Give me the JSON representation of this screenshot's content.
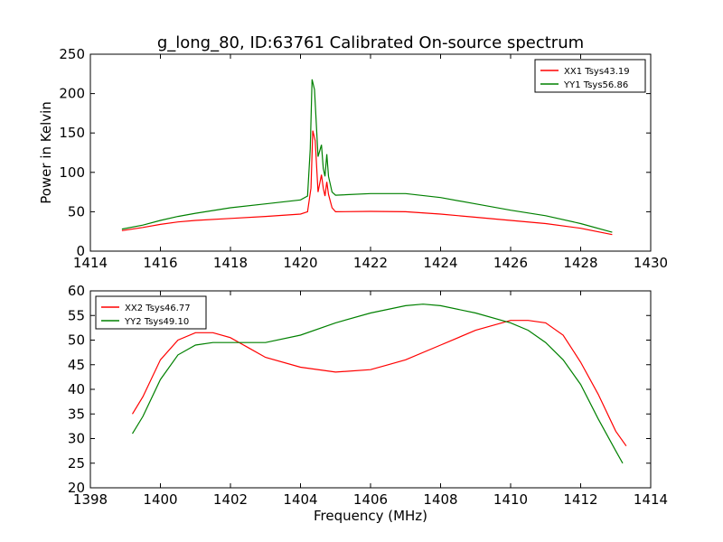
{
  "title": "g_long_80, ID:63761 Calibrated On-source spectrum",
  "chart_data": [
    {
      "type": "line",
      "ylabel": "Power in Kelvin",
      "xlabel": "",
      "xlim": [
        1414,
        1430
      ],
      "ylim": [
        0,
        250
      ],
      "xticks": [
        1414,
        1416,
        1418,
        1420,
        1422,
        1424,
        1426,
        1428,
        1430
      ],
      "yticks": [
        0,
        50,
        100,
        150,
        200,
        250
      ],
      "legend_position": "top-right",
      "series": [
        {
          "name": "XX1 Tsys43.19",
          "color": "#ff0000",
          "points": [
            [
              1414.9,
              26
            ],
            [
              1415.5,
              30
            ],
            [
              1416,
              34
            ],
            [
              1416.5,
              37
            ],
            [
              1417,
              39
            ],
            [
              1418,
              41.5
            ],
            [
              1419,
              44
            ],
            [
              1420,
              47
            ],
            [
              1420.2,
              50
            ],
            [
              1420.3,
              80
            ],
            [
              1420.35,
              153
            ],
            [
              1420.42,
              140
            ],
            [
              1420.5,
              75
            ],
            [
              1420.6,
              97
            ],
            [
              1420.65,
              80
            ],
            [
              1420.7,
              70
            ],
            [
              1420.75,
              88
            ],
            [
              1420.8,
              72
            ],
            [
              1420.9,
              55
            ],
            [
              1421,
              50
            ],
            [
              1422,
              50.5
            ],
            [
              1423,
              50
            ],
            [
              1424,
              47
            ],
            [
              1425,
              43
            ],
            [
              1426,
              39
            ],
            [
              1427,
              35
            ],
            [
              1428,
              29
            ],
            [
              1428.9,
              21
            ]
          ]
        },
        {
          "name": "YY1 Tsys56.86",
          "color": "#008000",
          "points": [
            [
              1414.9,
              28
            ],
            [
              1415.5,
              33
            ],
            [
              1416,
              39
            ],
            [
              1416.5,
              44
            ],
            [
              1417,
              48
            ],
            [
              1418,
              55
            ],
            [
              1419,
              60
            ],
            [
              1420,
              65
            ],
            [
              1420.2,
              70
            ],
            [
              1420.28,
              130
            ],
            [
              1420.33,
              218
            ],
            [
              1420.4,
              205
            ],
            [
              1420.5,
              120
            ],
            [
              1420.6,
              135
            ],
            [
              1420.65,
              105
            ],
            [
              1420.7,
              95
            ],
            [
              1420.75,
              123
            ],
            [
              1420.8,
              95
            ],
            [
              1420.9,
              75
            ],
            [
              1421,
              71
            ],
            [
              1422,
              73
            ],
            [
              1423,
              73
            ],
            [
              1424,
              68
            ],
            [
              1425,
              60
            ],
            [
              1426,
              52
            ],
            [
              1427,
              45
            ],
            [
              1428,
              35
            ],
            [
              1428.9,
              24
            ]
          ]
        }
      ]
    },
    {
      "type": "line",
      "ylabel": "",
      "xlabel": "Frequency (MHz)",
      "xlim": [
        1398,
        1414
      ],
      "ylim": [
        20,
        60
      ],
      "xticks": [
        1398,
        1400,
        1402,
        1404,
        1406,
        1408,
        1410,
        1412,
        1414
      ],
      "yticks": [
        20,
        25,
        30,
        35,
        40,
        45,
        50,
        55,
        60
      ],
      "legend_position": "top-left",
      "series": [
        {
          "name": "XX2 Tsys46.77",
          "color": "#ff0000",
          "points": [
            [
              1399.2,
              35
            ],
            [
              1399.5,
              38.5
            ],
            [
              1400,
              46
            ],
            [
              1400.5,
              50
            ],
            [
              1401,
              51.5
            ],
            [
              1401.5,
              51.5
            ],
            [
              1402,
              50.5
            ],
            [
              1402.5,
              48.5
            ],
            [
              1403,
              46.5
            ],
            [
              1404,
              44.5
            ],
            [
              1405,
              43.5
            ],
            [
              1406,
              44
            ],
            [
              1406.5,
              45
            ],
            [
              1407,
              46
            ],
            [
              1408,
              49
            ],
            [
              1409,
              52
            ],
            [
              1410,
              54
            ],
            [
              1410.5,
              54
            ],
            [
              1411,
              53.5
            ],
            [
              1411.5,
              51
            ],
            [
              1412,
              45.5
            ],
            [
              1412.5,
              39
            ],
            [
              1413,
              31.5
            ],
            [
              1413.3,
              28.5
            ]
          ]
        },
        {
          "name": "YY2 Tsys49.10",
          "color": "#008000",
          "points": [
            [
              1399.2,
              31
            ],
            [
              1399.5,
              34.5
            ],
            [
              1400,
              42
            ],
            [
              1400.5,
              47
            ],
            [
              1401,
              49
            ],
            [
              1401.5,
              49.5
            ],
            [
              1402,
              49.5
            ],
            [
              1402.5,
              49.5
            ],
            [
              1403,
              49.5
            ],
            [
              1404,
              51
            ],
            [
              1405,
              53.5
            ],
            [
              1406,
              55.5
            ],
            [
              1407,
              57
            ],
            [
              1407.5,
              57.3
            ],
            [
              1408,
              57
            ],
            [
              1409,
              55.5
            ],
            [
              1410,
              53.5
            ],
            [
              1410.5,
              52
            ],
            [
              1411,
              49.5
            ],
            [
              1411.5,
              46
            ],
            [
              1412,
              41
            ],
            [
              1412.5,
              34
            ],
            [
              1413,
              27.5
            ],
            [
              1413.2,
              25
            ]
          ]
        }
      ]
    }
  ]
}
